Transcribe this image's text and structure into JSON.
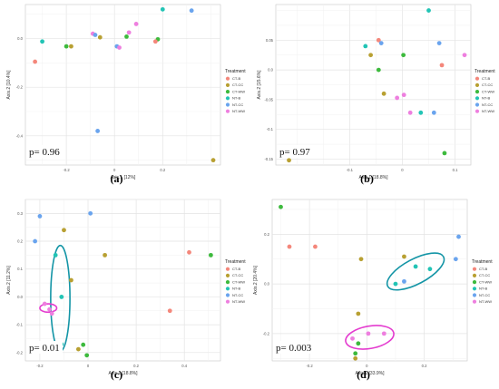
{
  "legend_title": "Treatment",
  "treatments": [
    "CT-B",
    "CT-CC",
    "CT-WW",
    "NT-B",
    "NT-CC",
    "NT-WW"
  ],
  "colors": {
    "CT-B": "#f4877b",
    "CT-CC": "#b8a032",
    "CT-WW": "#3dba3d",
    "NT-B": "#22c4b5",
    "NT-CC": "#6aa4ee",
    "NT-WW": "#ee7fdf",
    "ellipse_teal": "#1495a6",
    "ellipse_pink": "#e43ccf"
  },
  "chart_data": [
    {
      "type": "scatter",
      "panel_label": "(a)",
      "pvalue_text": "p= 0.96",
      "xlabel": "Axis.1  [12%]",
      "ylabel": "Axis.2  [10.4%]",
      "xlim": [
        -0.37,
        0.44
      ],
      "ylim": [
        -0.52,
        0.14
      ],
      "xticks": [
        -0.2,
        0.0,
        0.2
      ],
      "yticks": [
        -0.4,
        -0.2,
        0.0
      ],
      "grid": true,
      "legend": "right",
      "points": [
        {
          "t": "NT-B",
          "x": 0.2,
          "y": 0.12
        },
        {
          "t": "NT-CC",
          "x": 0.32,
          "y": 0.115
        },
        {
          "t": "NT-WW",
          "x": 0.09,
          "y": 0.06
        },
        {
          "t": "NT-WW",
          "x": 0.06,
          "y": 0.025
        },
        {
          "t": "CT-WW",
          "x": 0.05,
          "y": 0.008
        },
        {
          "t": "NT-WW",
          "x": -0.09,
          "y": 0.02
        },
        {
          "t": "NT-CC",
          "x": -0.08,
          "y": 0.015
        },
        {
          "t": "CT-CC",
          "x": -0.06,
          "y": 0.005
        },
        {
          "t": "CT-WW",
          "x": 0.18,
          "y": -0.003
        },
        {
          "t": "CT-B",
          "x": 0.17,
          "y": -0.012
        },
        {
          "t": "NT-B",
          "x": -0.3,
          "y": -0.012
        },
        {
          "t": "CT-WW",
          "x": -0.2,
          "y": -0.032
        },
        {
          "t": "CT-CC",
          "x": -0.18,
          "y": -0.032
        },
        {
          "t": "NT-CC",
          "x": 0.01,
          "y": -0.032
        },
        {
          "t": "NT-WW",
          "x": 0.02,
          "y": -0.037
        },
        {
          "t": "CT-B",
          "x": -0.33,
          "y": -0.095
        },
        {
          "t": "NT-CC",
          "x": -0.07,
          "y": -0.38
        },
        {
          "t": "CT-CC",
          "x": 0.41,
          "y": -0.5
        }
      ]
    },
    {
      "type": "scatter",
      "panel_label": "(b)",
      "pvalue_text": "p= 0.97",
      "xlabel": "Axis.1  [18.8%]",
      "ylabel": "Axis.2  [15.6%]",
      "xlim": [
        -0.24,
        0.13
      ],
      "ylim": [
        -0.16,
        0.11
      ],
      "xticks": [
        -0.1,
        0.0,
        0.1
      ],
      "yticks": [
        -0.15,
        -0.1,
        -0.05,
        0.0,
        0.05
      ],
      "grid": true,
      "legend": "right",
      "points": [
        {
          "t": "NT-B",
          "x": 0.05,
          "y": 0.1
        },
        {
          "t": "CT-B",
          "x": -0.045,
          "y": 0.05
        },
        {
          "t": "NT-CC",
          "x": 0.07,
          "y": 0.045
        },
        {
          "t": "NT-CC",
          "x": -0.04,
          "y": 0.045
        },
        {
          "t": "NT-B",
          "x": -0.07,
          "y": 0.04
        },
        {
          "t": "CT-CC",
          "x": -0.06,
          "y": 0.025
        },
        {
          "t": "CT-WW",
          "x": 0.002,
          "y": 0.025
        },
        {
          "t": "NT-WW",
          "x": 0.118,
          "y": 0.025
        },
        {
          "t": "CT-B",
          "x": 0.075,
          "y": 0.008
        },
        {
          "t": "CT-WW",
          "x": -0.045,
          "y": 0.0
        },
        {
          "t": "CT-CC",
          "x": -0.035,
          "y": -0.04
        },
        {
          "t": "NT-WW",
          "x": 0.003,
          "y": -0.042
        },
        {
          "t": "NT-WW",
          "x": -0.01,
          "y": -0.047
        },
        {
          "t": "NT-WW",
          "x": 0.015,
          "y": -0.072
        },
        {
          "t": "NT-B",
          "x": 0.035,
          "y": -0.072
        },
        {
          "t": "NT-CC",
          "x": 0.06,
          "y": -0.072
        },
        {
          "t": "CT-WW",
          "x": 0.08,
          "y": -0.14
        },
        {
          "t": "CT-CC",
          "x": -0.215,
          "y": -0.152
        }
      ]
    },
    {
      "type": "scatter",
      "panel_label": "(c)",
      "pvalue_text": "p= 0.01",
      "xlabel": "Axis.1  [18.8%]",
      "ylabel": "Axis.2  [11.2%]",
      "xlim": [
        -0.26,
        0.55
      ],
      "ylim": [
        -0.23,
        0.35
      ],
      "xticks": [
        -0.2,
        0.0,
        0.2,
        0.4
      ],
      "yticks": [
        -0.2,
        -0.1,
        0.0,
        0.1,
        0.2,
        0.3
      ],
      "grid": true,
      "legend": "right",
      "points": [
        {
          "t": "NT-CC",
          "x": 0.01,
          "y": 0.3
        },
        {
          "t": "NT-CC",
          "x": -0.2,
          "y": 0.29
        },
        {
          "t": "CT-CC",
          "x": -0.1,
          "y": 0.24
        },
        {
          "t": "NT-CC",
          "x": -0.22,
          "y": 0.2
        },
        {
          "t": "CT-B",
          "x": 0.42,
          "y": 0.16
        },
        {
          "t": "CT-WW",
          "x": 0.51,
          "y": 0.15
        },
        {
          "t": "NT-B",
          "x": -0.135,
          "y": 0.15
        },
        {
          "t": "CT-CC",
          "x": 0.07,
          "y": 0.15
        },
        {
          "t": "CT-CC",
          "x": -0.07,
          "y": 0.06
        },
        {
          "t": "NT-B",
          "x": -0.11,
          "y": 0.0
        },
        {
          "t": "NT-WW",
          "x": -0.18,
          "y": -0.025
        },
        {
          "t": "NT-WW",
          "x": -0.16,
          "y": -0.045
        },
        {
          "t": "NT-WW",
          "x": -0.15,
          "y": -0.06
        },
        {
          "t": "CT-B",
          "x": 0.34,
          "y": -0.05
        },
        {
          "t": "NT-B",
          "x": -0.11,
          "y": -0.17
        },
        {
          "t": "CT-WW",
          "x": -0.02,
          "y": -0.172
        },
        {
          "t": "CT-CC",
          "x": -0.04,
          "y": -0.188
        },
        {
          "t": "CT-WW",
          "x": -0.005,
          "y": -0.21
        }
      ],
      "ellipses": [
        {
          "color": "ellipse_teal",
          "cx": -0.115,
          "cy": -0.005,
          "rx": 0.04,
          "ry": 0.19,
          "angle": 0
        },
        {
          "color": "ellipse_pink",
          "cx": -0.165,
          "cy": -0.04,
          "rx": 0.035,
          "ry": 0.015,
          "angle": 0
        }
      ]
    },
    {
      "type": "scatter",
      "panel_label": "(d)",
      "pvalue_text": "p= 0.003",
      "xlabel": "Axis.1  [33.9%]",
      "ylabel": "Axis.2  [20.4%]",
      "xlim": [
        -0.33,
        0.35
      ],
      "ylim": [
        -0.31,
        0.34
      ],
      "xticks": [
        -0.2,
        0.0,
        0.2
      ],
      "yticks": [
        -0.2,
        0.0,
        0.2
      ],
      "grid": true,
      "legend": "right",
      "points": [
        {
          "t": "CT-WW",
          "x": -0.3,
          "y": 0.31
        },
        {
          "t": "NT-CC",
          "x": 0.32,
          "y": 0.19
        },
        {
          "t": "CT-B",
          "x": -0.27,
          "y": 0.15
        },
        {
          "t": "CT-B",
          "x": -0.18,
          "y": 0.15
        },
        {
          "t": "CT-CC",
          "x": 0.13,
          "y": 0.11
        },
        {
          "t": "NT-CC",
          "x": 0.31,
          "y": 0.1
        },
        {
          "t": "CT-CC",
          "x": -0.02,
          "y": 0.1
        },
        {
          "t": "NT-B",
          "x": 0.17,
          "y": 0.07
        },
        {
          "t": "NT-B",
          "x": 0.22,
          "y": 0.06
        },
        {
          "t": "NT-CC",
          "x": 0.13,
          "y": 0.01
        },
        {
          "t": "NT-B",
          "x": 0.1,
          "y": 0.0
        },
        {
          "t": "CT-CC",
          "x": -0.03,
          "y": -0.12
        },
        {
          "t": "NT-WW",
          "x": 0.005,
          "y": -0.2
        },
        {
          "t": "NT-WW",
          "x": 0.06,
          "y": -0.2
        },
        {
          "t": "NT-WW",
          "x": -0.05,
          "y": -0.22
        },
        {
          "t": "CT-WW",
          "x": -0.03,
          "y": -0.24
        },
        {
          "t": "CT-WW",
          "x": -0.04,
          "y": -0.28
        },
        {
          "t": "CT-CC",
          "x": -0.04,
          "y": -0.3
        }
      ],
      "ellipses": [
        {
          "color": "ellipse_teal",
          "cx": 0.17,
          "cy": 0.05,
          "rx": 0.11,
          "ry": 0.05,
          "angle": -28
        },
        {
          "color": "ellipse_pink",
          "cx": 0.01,
          "cy": -0.215,
          "rx": 0.085,
          "ry": 0.045,
          "angle": -10
        }
      ]
    }
  ]
}
